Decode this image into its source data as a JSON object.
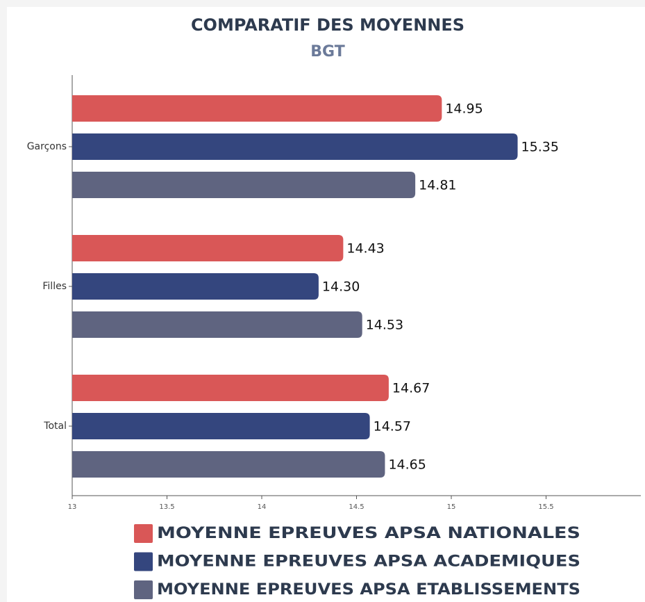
{
  "chart_data": {
    "type": "bar",
    "orientation": "horizontal",
    "title": "COMPARATIF DES MOYENNES",
    "subtitle": "BGT",
    "categories": [
      "Garçons",
      "Filles",
      "Total"
    ],
    "series": [
      {
        "name": "MOYENNE EPREUVES APSA NATIONALES",
        "color": "#d95757",
        "values": [
          14.95,
          14.43,
          14.67
        ],
        "value_labels": [
          "14.95",
          "14.43",
          "14.67"
        ]
      },
      {
        "name": "MOYENNE EPREUVES APSA ACADEMIQUES",
        "color": "#34467e",
        "values": [
          15.35,
          14.3,
          14.57
        ],
        "value_labels": [
          "15.35",
          "14.30",
          "14.57"
        ]
      },
      {
        "name": "MOYENNE EPREUVES APSA ETABLISSEMENTS",
        "color": "#5f6480",
        "values": [
          14.81,
          14.53,
          14.65
        ],
        "value_labels": [
          "14.81",
          "14.53",
          "14.65"
        ]
      }
    ],
    "xlim": [
      13,
      16
    ],
    "xticks": [
      13,
      13.5,
      14,
      14.5,
      15,
      15.5
    ],
    "grid": false,
    "legend": "bottom"
  }
}
